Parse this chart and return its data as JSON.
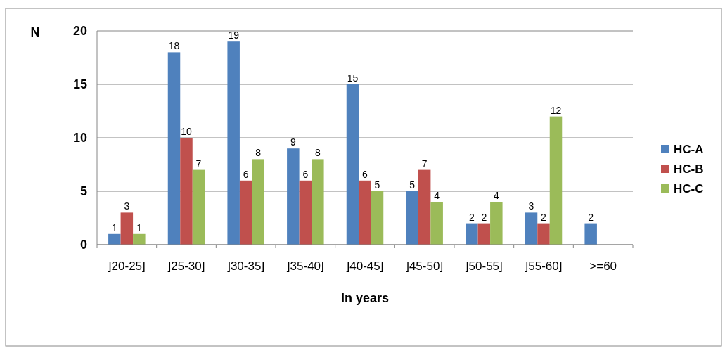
{
  "chart_data": {
    "type": "bar",
    "ylabel": "N",
    "xlabel": "In years",
    "categories": [
      "]20-25]",
      "]25-30]",
      "]30-35]",
      "]35-40]",
      "]40-45]",
      "]45-50]",
      "]50-55]",
      "]55-60]",
      ">=60"
    ],
    "series": [
      {
        "name": "HC-A",
        "color": "#4f81bd",
        "values": [
          1,
          18,
          19,
          9,
          15,
          5,
          2,
          3,
          2
        ]
      },
      {
        "name": "HC-B",
        "color": "#c0504d",
        "values": [
          3,
          10,
          6,
          6,
          6,
          7,
          2,
          2,
          null
        ]
      },
      {
        "name": "HC-C",
        "color": "#9bbb59",
        "values": [
          1,
          7,
          8,
          8,
          5,
          4,
          4,
          12,
          null
        ]
      }
    ],
    "ylim": [
      0,
      20
    ],
    "yticks": [
      0,
      5,
      10,
      15,
      20
    ],
    "grid": "y",
    "legend": "right",
    "data_labels": true
  }
}
